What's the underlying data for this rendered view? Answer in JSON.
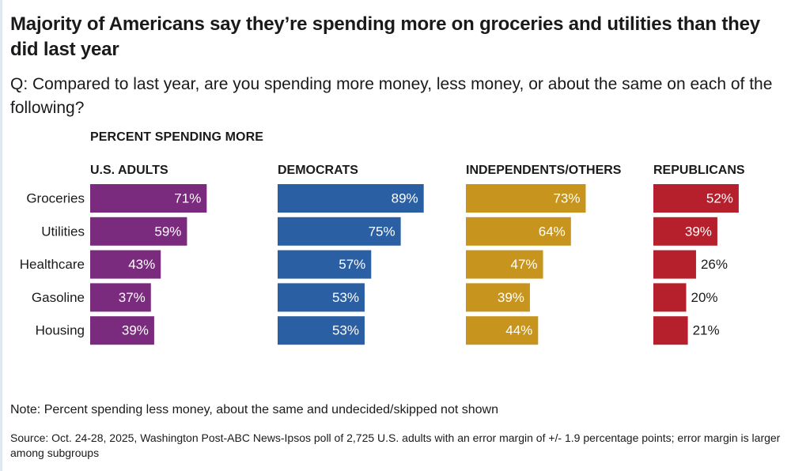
{
  "title": "Majority of Americans say they’re spending more on groceries and utilities than they did last year",
  "question": "Q: Compared to last year, are you spending more money, less money, or about the same on each of the following?",
  "chart_data": {
    "type": "bar",
    "subtitle": "PERCENT SPENDING MORE",
    "categories": [
      "Groceries",
      "Utilities",
      "Healthcare",
      "Gasoline",
      "Housing"
    ],
    "unit": "%",
    "series": [
      {
        "name": "U.S. ADULTS",
        "color": "#7a2b7e",
        "values": [
          71,
          59,
          43,
          37,
          39
        ]
      },
      {
        "name": "DEMOCRATS",
        "color": "#2b5fa3",
        "values": [
          89,
          75,
          57,
          53,
          53
        ]
      },
      {
        "name": "INDEPENDENTS/OTHERS",
        "color": "#c7951e",
        "values": [
          73,
          64,
          47,
          39,
          44
        ]
      },
      {
        "name": "REPUBLICANS",
        "color": "#b5202c",
        "values": [
          52,
          39,
          26,
          20,
          21
        ]
      }
    ]
  },
  "note": "Note: Percent spending less money, about the same and undecided/skipped not shown",
  "source": "Source: Oct. 24-28, 2025, Washington Post-ABC News-Ipsos poll of 2,725 U.S. adults with an error margin of +/- 1.9 percentage points; error margin is larger among subgroups"
}
